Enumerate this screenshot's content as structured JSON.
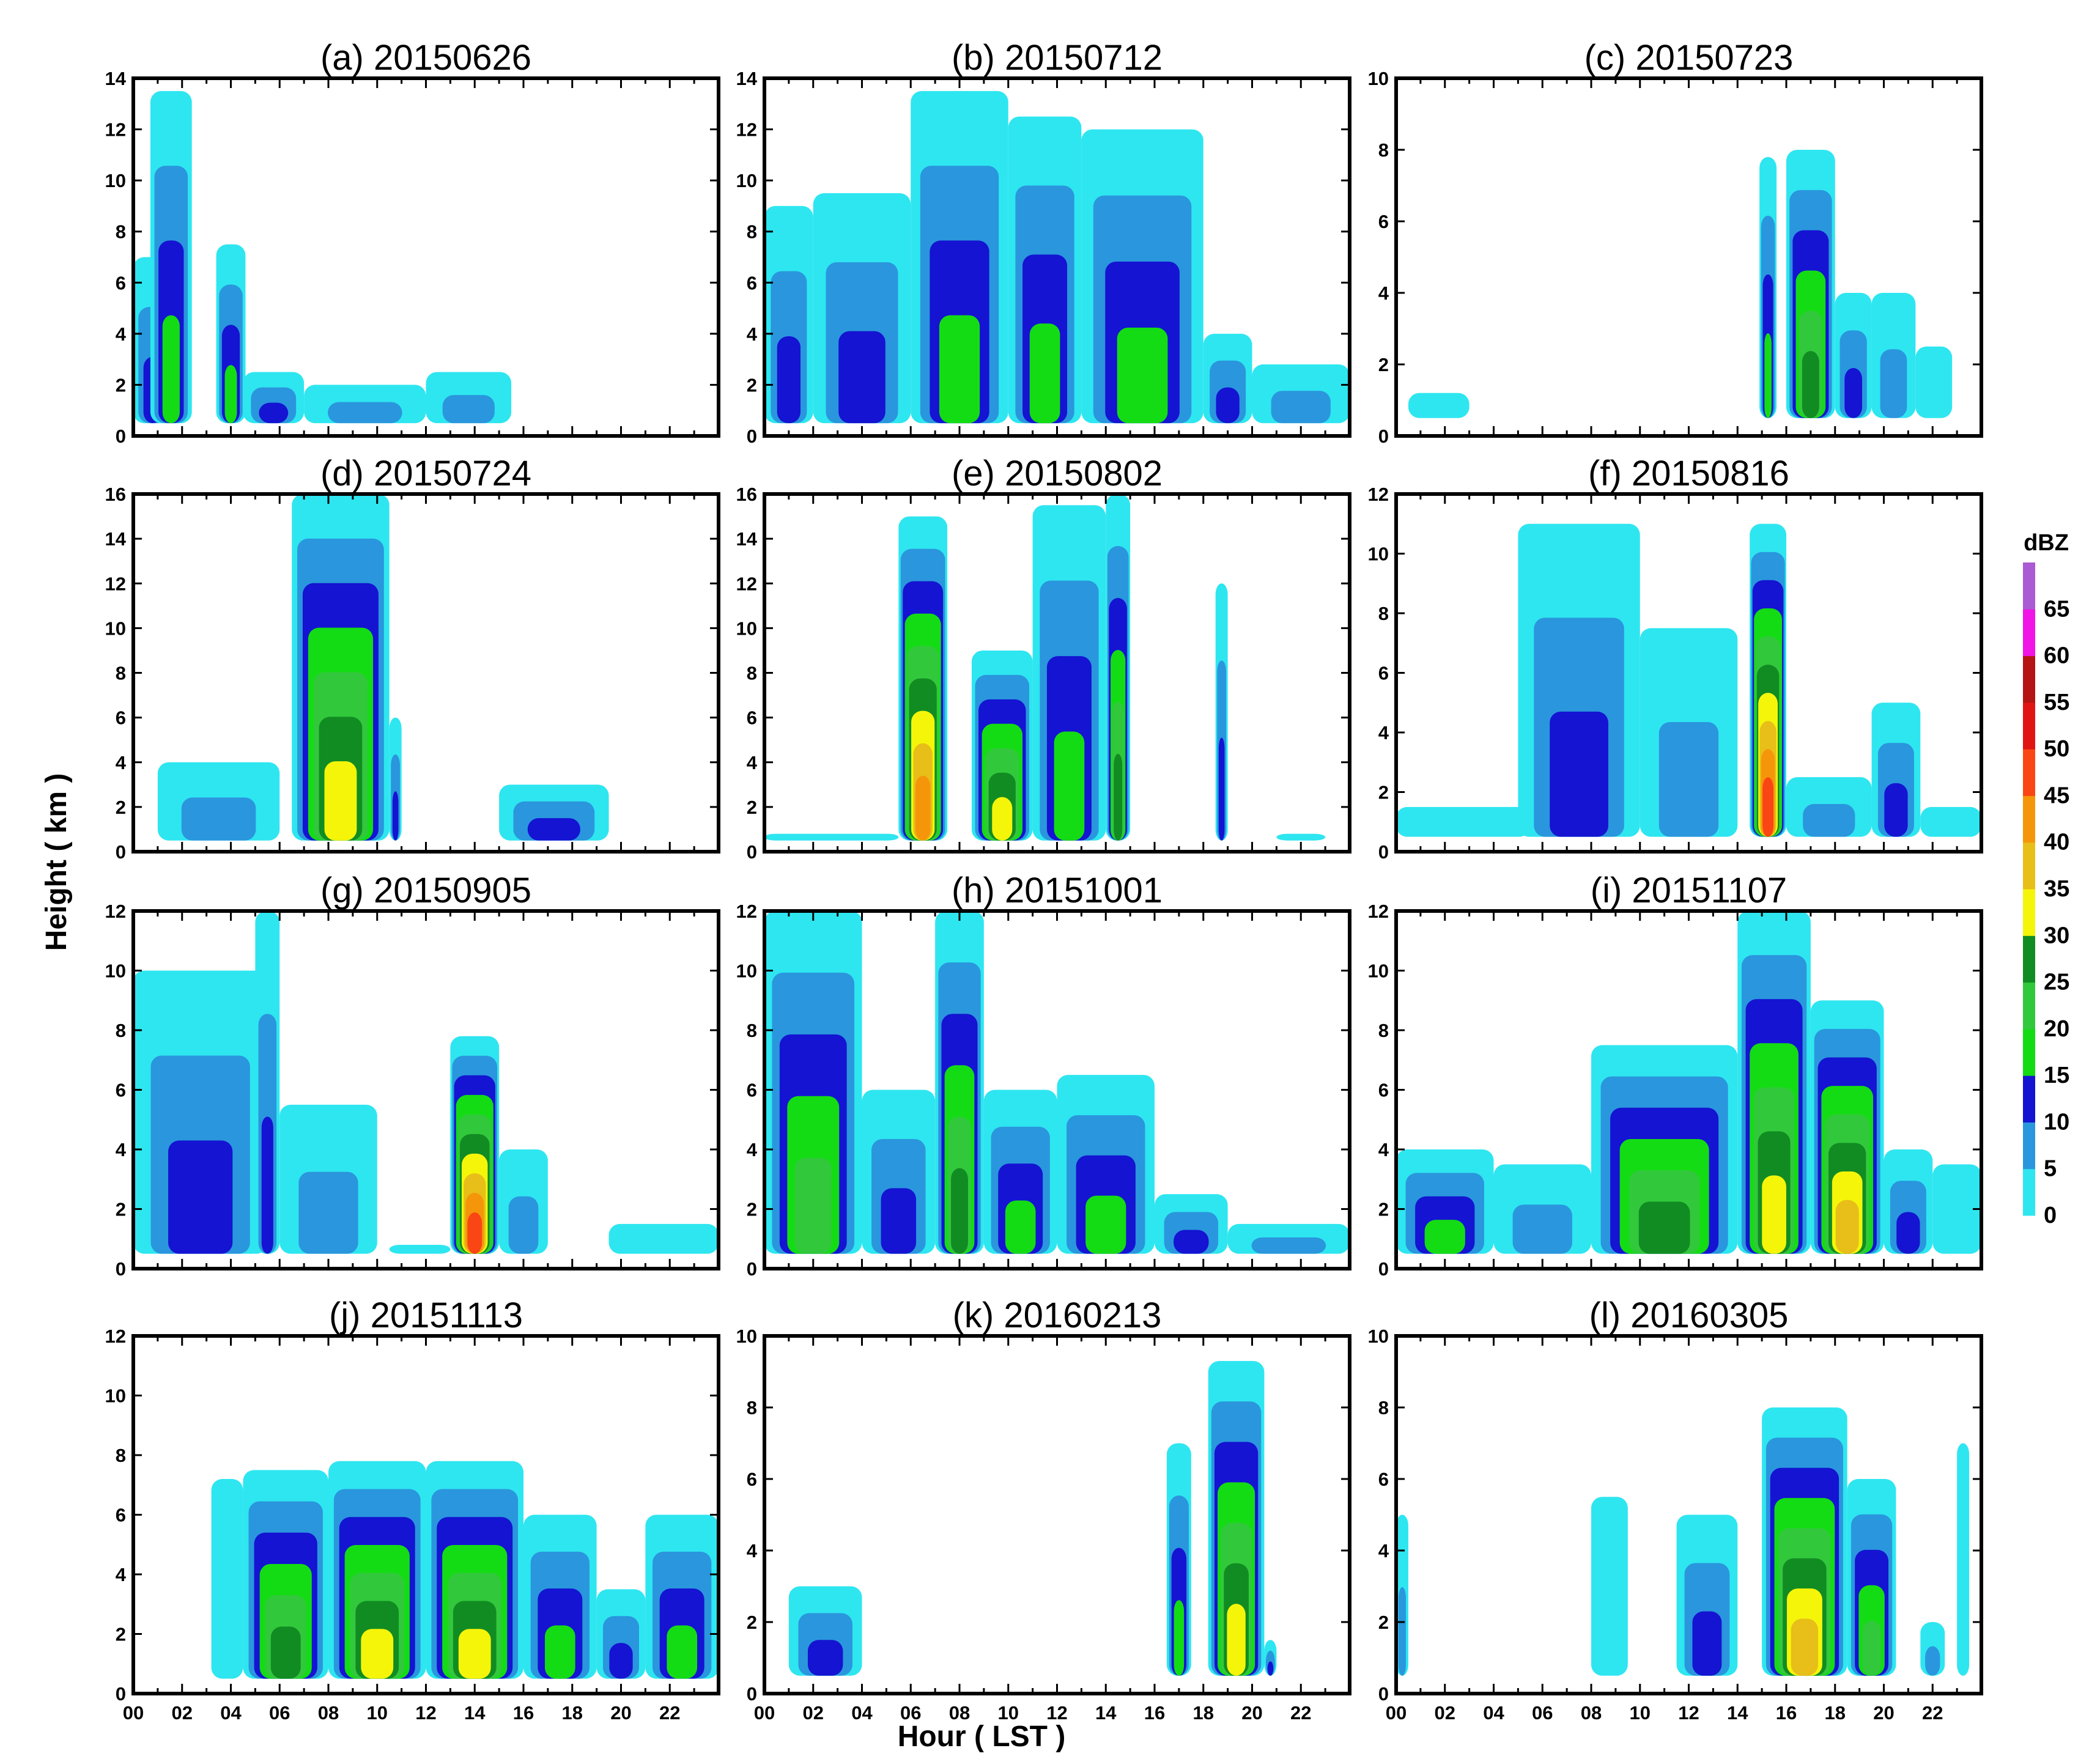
{
  "chart_data": {
    "type": "heatmap",
    "title": "",
    "xlabel": "Hour ( LST )",
    "ylabel": "Height ( km )",
    "x_ticks": [
      "00",
      "02",
      "04",
      "06",
      "08",
      "10",
      "12",
      "14",
      "16",
      "18",
      "20",
      "22"
    ],
    "xlim": [
      0,
      24
    ],
    "colorbar": {
      "title": "dBZ",
      "levels": [
        0,
        5,
        10,
        15,
        20,
        25,
        30,
        35,
        40,
        45,
        50,
        55,
        60,
        65
      ],
      "colors": [
        "#2ee6f0",
        "#2a96dd",
        "#1414d2",
        "#14dc14",
        "#32c83c",
        "#118c22",
        "#f5f50a",
        "#e8be19",
        "#f5960a",
        "#fa4614",
        "#e11414",
        "#b41414",
        "#f014e6",
        "#aa5ad2"
      ]
    },
    "panels": [
      {
        "label": "(a) 20150626",
        "ylim": [
          0,
          14
        ],
        "yticks": [
          0,
          2,
          4,
          6,
          8,
          10,
          12,
          14
        ],
        "cells": [
          [
            0,
            1.6,
            7,
            2
          ],
          [
            0.7,
            2.4,
            13.5,
            3
          ],
          [
            3.4,
            4.6,
            7.5,
            3
          ],
          [
            4.5,
            7,
            2.5,
            2
          ],
          [
            7,
            12,
            2,
            1
          ],
          [
            12,
            15.5,
            2.5,
            1
          ]
        ]
      },
      {
        "label": "(b) 20150712",
        "ylim": [
          0,
          14
        ],
        "yticks": [
          0,
          2,
          4,
          6,
          8,
          10,
          12,
          14
        ],
        "cells": [
          [
            0,
            2,
            9,
            2
          ],
          [
            2,
            6,
            9.5,
            2
          ],
          [
            6,
            10,
            13.5,
            3
          ],
          [
            10,
            13,
            12.5,
            3
          ],
          [
            13,
            18,
            12,
            3
          ],
          [
            18,
            20,
            4,
            2
          ],
          [
            20,
            24,
            2.8,
            1
          ]
        ]
      },
      {
        "label": "(c) 20150723",
        "ylim": [
          0,
          10
        ],
        "yticks": [
          0,
          2,
          4,
          6,
          8,
          10
        ],
        "cells": [
          [
            0.5,
            3,
            1.2,
            0
          ],
          [
            14.9,
            15.6,
            7.8,
            3
          ],
          [
            16,
            18,
            8,
            5
          ],
          [
            18,
            19.5,
            4,
            2
          ],
          [
            19.5,
            21.3,
            4,
            1
          ],
          [
            21.3,
            22.8,
            2.5,
            0
          ]
        ]
      },
      {
        "label": "(d) 20150724",
        "ylim": [
          0,
          16
        ],
        "yticks": [
          0,
          2,
          4,
          6,
          8,
          10,
          12,
          14,
          16
        ],
        "cells": [
          [
            1,
            6,
            4,
            1
          ],
          [
            6.5,
            10.5,
            16,
            6
          ],
          [
            10.5,
            11,
            6,
            2
          ],
          [
            15,
            19.5,
            3,
            2
          ]
        ]
      },
      {
        "label": "(e) 20150802",
        "ylim": [
          0,
          16
        ],
        "yticks": [
          0,
          2,
          4,
          6,
          8,
          10,
          12,
          14,
          16
        ],
        "cells": [
          [
            0,
            5.5,
            0.8,
            0
          ],
          [
            5.5,
            7.5,
            15,
            8
          ],
          [
            8.5,
            11,
            9,
            6
          ],
          [
            11,
            14,
            15.5,
            3
          ],
          [
            14,
            15,
            16,
            5
          ],
          [
            18.5,
            19,
            12,
            2
          ],
          [
            21,
            23,
            0.8,
            0
          ]
        ]
      },
      {
        "label": "(f) 20150816",
        "ylim": [
          0,
          12
        ],
        "yticks": [
          0,
          2,
          4,
          6,
          8,
          10,
          12
        ],
        "cells": [
          [
            0,
            5.5,
            1.5,
            0
          ],
          [
            5,
            10,
            11,
            2
          ],
          [
            10,
            14,
            7.5,
            1
          ],
          [
            14.5,
            16,
            11,
            9
          ],
          [
            16,
            19.5,
            2.5,
            1
          ],
          [
            19.5,
            21.5,
            5,
            2
          ],
          [
            21.5,
            24,
            1.5,
            0
          ]
        ]
      },
      {
        "label": "(g) 20150905",
        "ylim": [
          0,
          12
        ],
        "yticks": [
          0,
          2,
          4,
          6,
          8,
          10,
          12
        ],
        "cells": [
          [
            0,
            5.5,
            10,
            2
          ],
          [
            5,
            6,
            12,
            2
          ],
          [
            6,
            10,
            5.5,
            1
          ],
          [
            10.5,
            13,
            0.8,
            0
          ],
          [
            13,
            15,
            7.8,
            9
          ],
          [
            15,
            17,
            4,
            1
          ],
          [
            19.5,
            24,
            1.5,
            0
          ]
        ]
      },
      {
        "label": "(h) 20151001",
        "ylim": [
          0,
          12
        ],
        "yticks": [
          0,
          2,
          4,
          6,
          8,
          10,
          12
        ],
        "cells": [
          [
            0,
            4,
            12,
            4
          ],
          [
            4,
            7,
            6,
            2
          ],
          [
            7,
            9,
            12,
            5
          ],
          [
            9,
            12,
            6,
            3
          ],
          [
            12,
            16,
            6.5,
            3
          ],
          [
            16,
            19,
            2.5,
            2
          ],
          [
            19,
            24,
            1.5,
            1
          ]
        ]
      },
      {
        "label": "(i) 20151107",
        "ylim": [
          0,
          12
        ],
        "yticks": [
          0,
          2,
          4,
          6,
          8,
          10,
          12
        ],
        "cells": [
          [
            0,
            4,
            4,
            3
          ],
          [
            4,
            8,
            3.5,
            1
          ],
          [
            8,
            14,
            7.5,
            5
          ],
          [
            14,
            17,
            12,
            6
          ],
          [
            17,
            20,
            9,
            7
          ],
          [
            20,
            22,
            4,
            2
          ],
          [
            22,
            24,
            3.5,
            0
          ]
        ]
      },
      {
        "label": "(j) 20151113",
        "ylim": [
          0,
          12
        ],
        "yticks": [
          0,
          2,
          4,
          6,
          8,
          10,
          12
        ],
        "cells": [
          [
            3.2,
            4.5,
            7.2,
            0
          ],
          [
            4.5,
            8,
            7.5,
            5
          ],
          [
            8,
            12,
            7.8,
            6
          ],
          [
            12,
            16,
            7.8,
            6
          ],
          [
            16,
            19,
            6,
            3
          ],
          [
            19,
            21,
            3.5,
            2
          ],
          [
            21,
            24,
            6,
            3
          ]
        ]
      },
      {
        "label": "(k) 20160213",
        "ylim": [
          0,
          10
        ],
        "yticks": [
          0,
          2,
          4,
          6,
          8,
          10
        ],
        "cells": [
          [
            1,
            4,
            3,
            2
          ],
          [
            16.5,
            17.5,
            7,
            3
          ],
          [
            18.2,
            20.5,
            9.3,
            6
          ],
          [
            20.5,
            21,
            1.5,
            2
          ]
        ]
      },
      {
        "label": "(l) 20160305",
        "ylim": [
          0,
          10
        ],
        "yticks": [
          0,
          2,
          4,
          6,
          8,
          10
        ],
        "cells": [
          [
            0,
            0.5,
            5,
            1
          ],
          [
            8,
            9.5,
            5.5,
            0
          ],
          [
            11.5,
            14,
            5,
            2
          ],
          [
            15,
            18.5,
            8,
            7
          ],
          [
            18.5,
            20.5,
            6,
            4
          ],
          [
            21.5,
            22.5,
            2,
            1
          ],
          [
            23,
            23.5,
            7,
            0
          ]
        ]
      }
    ]
  }
}
